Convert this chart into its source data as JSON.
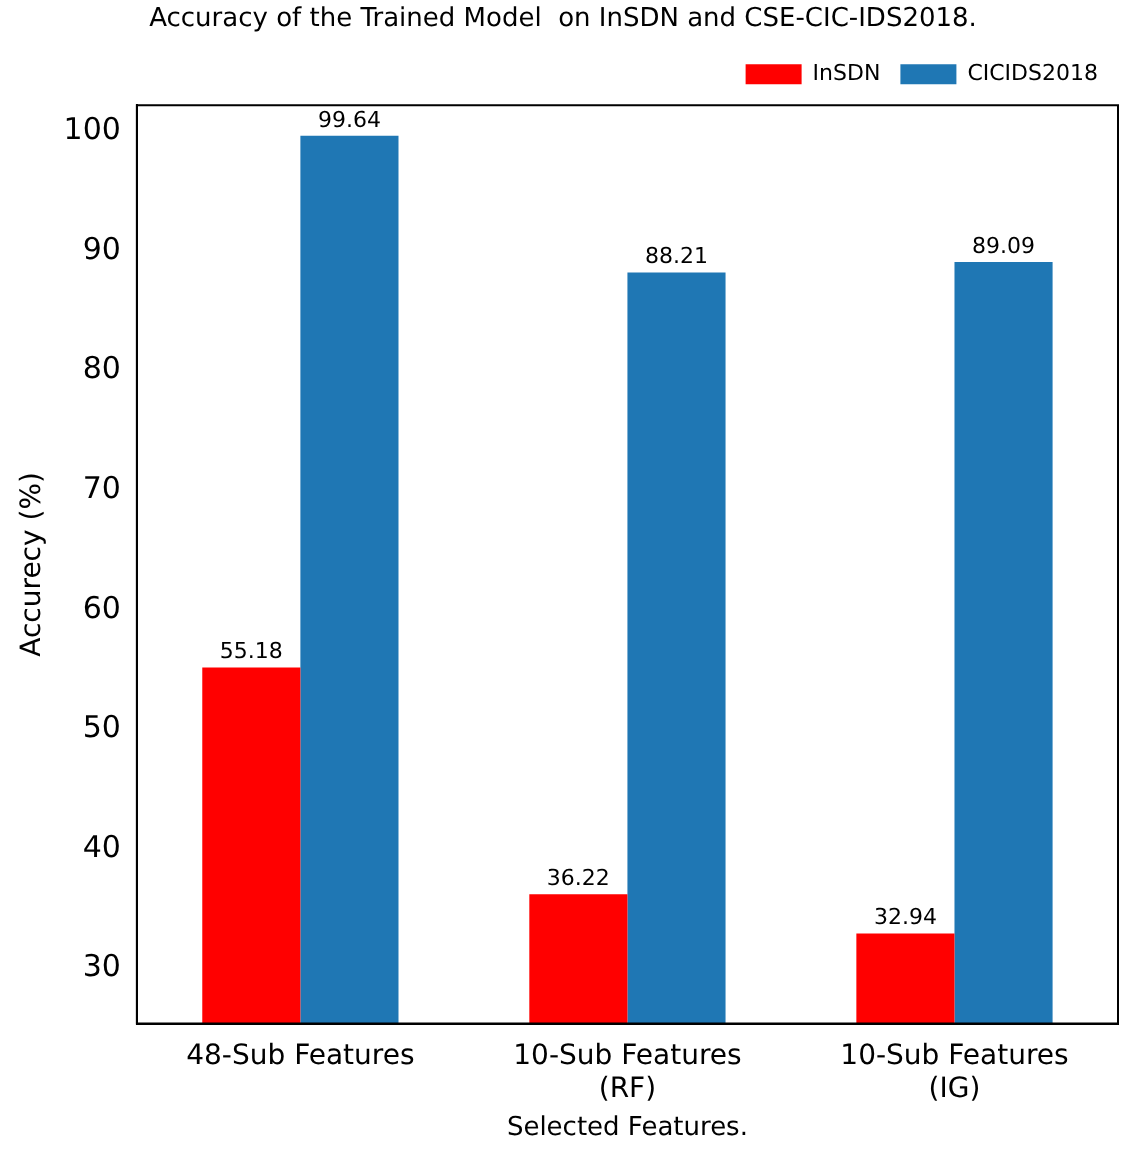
{
  "chart_data": {
    "type": "bar",
    "title": "Accuracy of the Trained Model  on InSDN and CSE-CIC-IDS2018.",
    "xlabel": "Selected Features.",
    "ylabel": "Accurecy (%)",
    "categories": [
      "48-Sub Features",
      "10-Sub Features\n(RF)",
      "10-Sub Features\n(IG)"
    ],
    "series": [
      {
        "name": "InSDN",
        "color": "#ff0000",
        "values": [
          55.18,
          36.22,
          32.94
        ]
      },
      {
        "name": "CICIDS2018",
        "color": "#1f77b4",
        "values": [
          99.64,
          88.21,
          89.09
        ]
      }
    ],
    "ylim": [
      25.4,
      102.2
    ],
    "yticks": [
      30,
      40,
      50,
      60,
      70,
      80,
      90,
      100
    ],
    "grid": false,
    "legend": "top right",
    "data_labels": true
  }
}
